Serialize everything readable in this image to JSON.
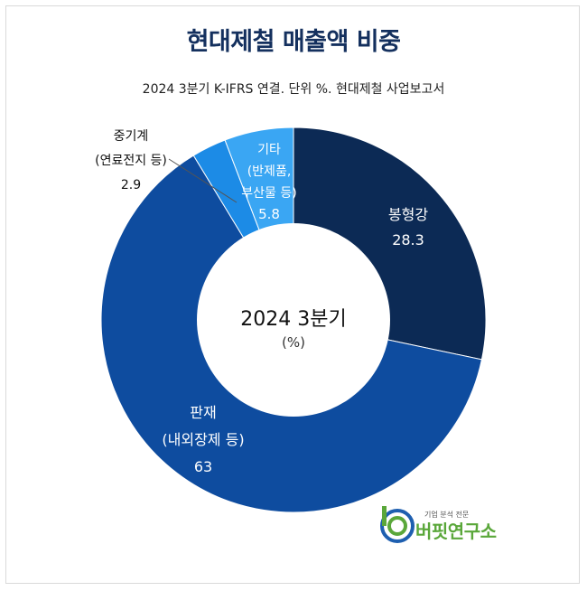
{
  "title": "현대제철 매출액 비중",
  "subtitle": "2024 3분기 K-IFRS 연결. 단위 %. 현대제철 사업보고서",
  "center": {
    "line1": "2024 3분기",
    "line2": "(%)"
  },
  "colors": {
    "bonghyeong": "#0c2a55",
    "panjae": "#0e4c9f",
    "junggigye": "#1c8be6",
    "gita": "#3aa6f3",
    "title": "#14305e",
    "logo_green": "#5aa73a"
  },
  "chart_data": {
    "type": "donut",
    "title": "현대제철 매출액 비중",
    "subtitle": "2024 3분기 K-IFRS 연결. 단위 %. 현대제철 사업보고서",
    "categories": [
      "봉형강",
      "판재 (내외장제 등)",
      "중기계 (연료전지 등)",
      "기타 (반제품, 부산물 등)"
    ],
    "values": [
      28.3,
      63,
      2.9,
      5.8
    ],
    "labels": [
      {
        "lines": [
          "봉형강"
        ],
        "value": "28.3"
      },
      {
        "lines": [
          "판재",
          "(내외장제 등)"
        ],
        "value": "63"
      },
      {
        "lines": [
          "중기계",
          "(연료전지 등)"
        ],
        "value": "2.9"
      },
      {
        "lines": [
          "기타",
          "(반제품,",
          "부산물 등)"
        ],
        "value": "5.8"
      }
    ]
  },
  "logo": {
    "tagline": "기업 분석 전문",
    "name": "버핏연구소"
  }
}
